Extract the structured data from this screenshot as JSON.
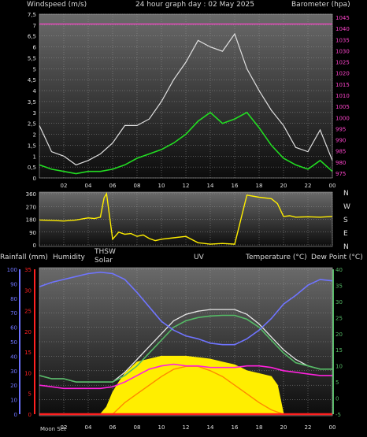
{
  "header": {
    "left_label": "Windspeed (m/s)",
    "title": "24 hour graph day : 02 May 2025",
    "right_label": "Barometer (hpa)"
  },
  "colors": {
    "wind_avg": "#22dd22",
    "wind_gust": "#e0e0e0",
    "barometer": "#ff44cc",
    "direction": "#ffee00",
    "humidity": "#6f74ff",
    "rain": "#ff2020",
    "thsw": "#e8e8e8",
    "solar": "#ffee00",
    "uv": "#ff8800",
    "temperature": "#55bb66",
    "dew_point": "#ff22dd",
    "grid": "#9a9a9a",
    "panel_top": "#6a6a6a",
    "panel_bottom": "#0c0c0c"
  },
  "x_ticks": [
    "02",
    "04",
    "06",
    "08",
    "10",
    "12",
    "14",
    "16",
    "18",
    "20",
    "22",
    "00"
  ],
  "wind_panel": {
    "left_ticks": [
      "7,5",
      "7",
      "6,5",
      "6",
      "5,5",
      "5",
      "4,5",
      "4",
      "3,5",
      "3",
      "2,5",
      "2",
      "1,5",
      "1",
      "0,5",
      "0"
    ],
    "right_ticks": [
      "1045",
      "1040",
      "1035",
      "1030",
      "1025",
      "1020",
      "1015",
      "1010",
      "1005",
      "1000",
      "995",
      "990",
      "985",
      "980",
      "975"
    ]
  },
  "direction_panel": {
    "left_ticks": [
      "360",
      "270",
      "180",
      "90",
      "0"
    ],
    "right_ticks": [
      "N",
      "W",
      "S",
      "E",
      "N"
    ]
  },
  "lower_panel": {
    "labels": {
      "rainfall": "Rainfall (mm)",
      "humidity": "Humidity",
      "thsw": "THSW",
      "solar": "Solar",
      "uv": "UV",
      "temperature": "Temperature (°C)",
      "dew_point": "Dew Point (°C)"
    },
    "humidity_ticks": [
      "100",
      "90",
      "80",
      "70",
      "60",
      "50",
      "40",
      "30",
      "20",
      "10",
      "0"
    ],
    "rain_ticks": [
      "35",
      "30",
      "25",
      "20",
      "15",
      "10",
      "5",
      "0"
    ],
    "temp_ticks": [
      "40",
      "35",
      "30",
      "25",
      "20",
      "15",
      "10",
      "5",
      "0",
      "-5"
    ],
    "moon_label": "Moon Set"
  },
  "chart_data": [
    {
      "type": "line",
      "x_unit": "hour",
      "xlim": [
        0,
        24
      ],
      "series": [
        {
          "name": "Windspeed",
          "axis": "left",
          "x": [
            0,
            1,
            2,
            3,
            4,
            5,
            6,
            7,
            8,
            9,
            10,
            11,
            12,
            13,
            14,
            15,
            16,
            17,
            18,
            19,
            20,
            21,
            22,
            23,
            24
          ],
          "values": [
            0.6,
            0.4,
            0.3,
            0.2,
            0.3,
            0.3,
            0.4,
            0.6,
            0.9,
            1.1,
            1.3,
            1.6,
            2.0,
            2.6,
            3.0,
            2.5,
            2.7,
            3.0,
            2.3,
            1.5,
            0.9,
            0.6,
            0.4,
            0.8,
            0.3
          ]
        },
        {
          "name": "Gust",
          "axis": "left",
          "x": [
            0,
            1,
            2,
            3,
            4,
            5,
            6,
            7,
            8,
            9,
            10,
            11,
            12,
            13,
            14,
            15,
            16,
            17,
            18,
            19,
            20,
            21,
            22,
            23,
            24
          ],
          "values": [
            2.4,
            1.2,
            1.0,
            0.6,
            0.8,
            1.1,
            1.6,
            2.4,
            2.4,
            2.7,
            3.5,
            4.5,
            5.3,
            6.3,
            6.0,
            5.8,
            6.6,
            5.0,
            4.0,
            3.1,
            2.4,
            1.4,
            1.2,
            2.2,
            0.8
          ]
        },
        {
          "name": "Barometer",
          "axis": "right",
          "x": [
            0,
            24
          ],
          "values": [
            1042,
            1042
          ]
        }
      ],
      "ylim_left": [
        0,
        7.5
      ],
      "ylim_right": [
        975,
        1045
      ]
    },
    {
      "type": "scatter",
      "x_unit": "hour",
      "xlim": [
        0,
        24
      ],
      "series": [
        {
          "name": "Wind direction",
          "x": [
            0,
            1,
            2,
            3,
            4,
            4.5,
            5,
            5.3,
            5.5,
            6,
            6.5,
            7,
            7.5,
            8,
            8.5,
            9,
            9.5,
            10,
            11,
            12,
            13,
            14,
            15,
            16,
            17,
            18,
            19,
            19.5,
            20,
            20.5,
            21,
            22,
            23,
            24
          ],
          "values": [
            175,
            172,
            168,
            175,
            190,
            185,
            195,
            330,
            360,
            40,
            90,
            75,
            80,
            60,
            70,
            45,
            30,
            40,
            50,
            60,
            15,
            5,
            10,
            5,
            350,
            335,
            325,
            290,
            200,
            205,
            195,
            198,
            195,
            200
          ]
        }
      ],
      "ylim": [
        0,
        360
      ]
    },
    {
      "type": "line",
      "x_unit": "hour",
      "xlim": [
        0,
        24
      ],
      "series": [
        {
          "name": "Humidity",
          "axis": "humidity",
          "x": [
            0,
            1,
            2,
            3,
            4,
            5,
            6,
            7,
            8,
            9,
            10,
            11,
            12,
            13,
            14,
            15,
            16,
            17,
            18,
            19,
            20,
            21,
            22,
            23,
            24
          ],
          "values": [
            88,
            91,
            93,
            95,
            97,
            98,
            97,
            93,
            84,
            74,
            64,
            58,
            54,
            52,
            49,
            48,
            48,
            52,
            58,
            66,
            76,
            82,
            89,
            93,
            92
          ]
        },
        {
          "name": "Temperature",
          "axis": "temp",
          "x": [
            0,
            1,
            2,
            3,
            4,
            5,
            6,
            7,
            8,
            9,
            10,
            11,
            12,
            13,
            14,
            15,
            16,
            17,
            18,
            19,
            20,
            21,
            22,
            23,
            24
          ],
          "values": [
            7,
            6,
            6,
            5,
            5,
            5,
            5,
            7,
            10,
            14,
            18,
            22,
            24,
            25,
            25.5,
            25.7,
            25.7,
            24.5,
            22,
            18,
            14,
            11,
            10,
            9,
            9
          ]
        },
        {
          "name": "THSW",
          "axis": "temp",
          "x": [
            0,
            1,
            2,
            3,
            4,
            5,
            6,
            7,
            8,
            9,
            10,
            11,
            12,
            13,
            14,
            15,
            16,
            17,
            18,
            19,
            20,
            21,
            22,
            23,
            24
          ],
          "values": [
            7,
            6,
            6,
            5,
            5,
            5,
            5,
            8,
            12,
            16,
            20,
            24,
            26,
            27,
            27.5,
            27.5,
            27.5,
            26,
            23,
            19,
            15,
            12,
            10,
            9,
            9
          ]
        },
        {
          "name": "Dew Point",
          "axis": "temp",
          "x": [
            0,
            1,
            2,
            3,
            4,
            5,
            6,
            7,
            8,
            9,
            10,
            11,
            12,
            13,
            14,
            15,
            16,
            17,
            18,
            19,
            20,
            21,
            22,
            23,
            24
          ],
          "values": [
            4,
            3.5,
            3,
            3,
            3,
            3,
            3.5,
            5,
            7,
            9,
            10,
            10.5,
            10,
            10,
            9.5,
            9.5,
            9.5,
            10,
            10,
            9.5,
            8.5,
            8,
            7.5,
            7,
            7
          ]
        },
        {
          "name": "Solar",
          "axis": "humidity",
          "x": [
            0,
            5,
            5.5,
            6,
            6.5,
            7,
            8,
            9,
            10,
            11,
            12,
            13,
            14,
            15,
            16,
            17,
            18,
            19,
            19.5,
            20,
            24
          ],
          "values": [
            0,
            0,
            5,
            15,
            22,
            28,
            36,
            38,
            40,
            40,
            40,
            39,
            38,
            36,
            34,
            30,
            28,
            26,
            20,
            0,
            0
          ]
        },
        {
          "name": "UV",
          "axis": "humidity",
          "x": [
            0,
            6,
            7,
            8,
            9,
            10,
            11,
            12,
            13,
            14,
            15,
            16,
            17,
            18,
            19,
            20,
            24
          ],
          "values": [
            0,
            0,
            8,
            14,
            20,
            26,
            31,
            33,
            33,
            30,
            26,
            20,
            14,
            8,
            3,
            0,
            0
          ]
        },
        {
          "name": "Rainfall",
          "axis": "rain",
          "x": [
            0,
            24
          ],
          "values": [
            0,
            0
          ]
        }
      ],
      "ylim_humidity": [
        0,
        100
      ],
      "ylim_rain": [
        0,
        35
      ],
      "ylim_temp": [
        -5,
        40
      ]
    }
  ]
}
